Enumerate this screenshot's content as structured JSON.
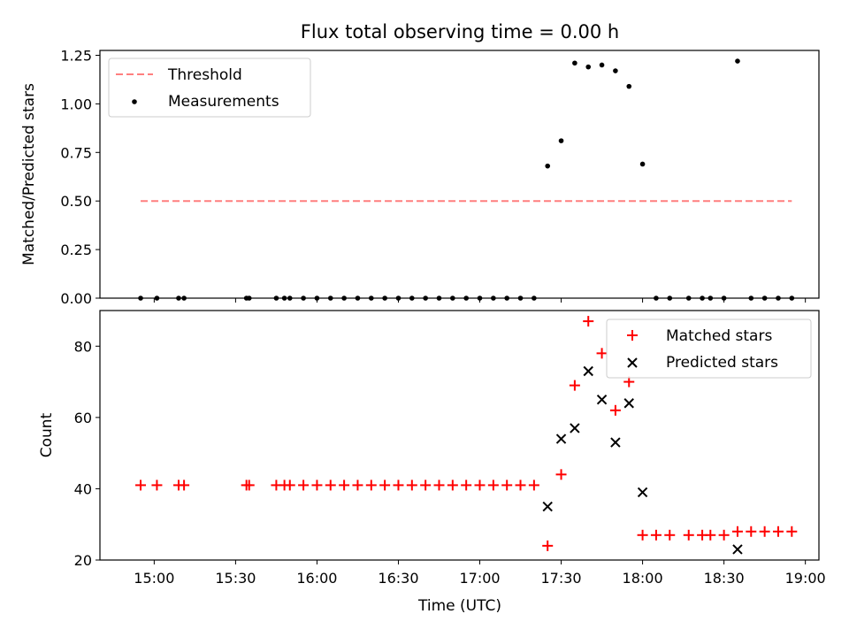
{
  "chart_data": [
    {
      "type": "scatter",
      "title": "Flux total observing time = 0.00 h",
      "xlabel": "",
      "ylabel": "Matched/Predicted stars",
      "xlim": [
        "14:40",
        "19:05"
      ],
      "ylim": [
        0,
        1.275
      ],
      "yticks": [
        "0.00",
        "0.25",
        "0.50",
        "0.75",
        "1.00",
        "1.25"
      ],
      "legend": {
        "placement": "top-left",
        "entries": [
          "Threshold",
          "Measurements"
        ]
      },
      "threshold": {
        "name": "Threshold",
        "value": 0.5,
        "x_start": "14:55",
        "x_end": "18:55",
        "color": "#ff7f7f",
        "style": "dashed"
      },
      "series": [
        {
          "name": "Measurements",
          "color": "#000000",
          "marker": "dot",
          "points": [
            [
              "14:55",
              0
            ],
            [
              "15:01",
              0
            ],
            [
              "15:09",
              0
            ],
            [
              "15:11",
              0
            ],
            [
              "15:34",
              0
            ],
            [
              "15:35",
              0
            ],
            [
              "15:45",
              0
            ],
            [
              "15:48",
              0
            ],
            [
              "15:50",
              0
            ],
            [
              "15:55",
              0
            ],
            [
              "16:00",
              0
            ],
            [
              "16:05",
              0
            ],
            [
              "16:10",
              0
            ],
            [
              "16:15",
              0
            ],
            [
              "16:20",
              0
            ],
            [
              "16:25",
              0
            ],
            [
              "16:30",
              0
            ],
            [
              "16:35",
              0
            ],
            [
              "16:40",
              0
            ],
            [
              "16:45",
              0
            ],
            [
              "16:50",
              0
            ],
            [
              "16:55",
              0
            ],
            [
              "17:00",
              0
            ],
            [
              "17:05",
              0
            ],
            [
              "17:10",
              0
            ],
            [
              "17:15",
              0
            ],
            [
              "17:20",
              0
            ],
            [
              "17:25",
              0.68
            ],
            [
              "17:30",
              0.81
            ],
            [
              "17:35",
              1.21
            ],
            [
              "17:40",
              1.19
            ],
            [
              "17:45",
              1.2
            ],
            [
              "17:50",
              1.17
            ],
            [
              "17:55",
              1.09
            ],
            [
              "18:00",
              0.69
            ],
            [
              "18:05",
              0
            ],
            [
              "18:10",
              0
            ],
            [
              "18:17",
              0
            ],
            [
              "18:22",
              0
            ],
            [
              "18:25",
              0
            ],
            [
              "18:30",
              0
            ],
            [
              "18:35",
              1.22
            ],
            [
              "18:40",
              0
            ],
            [
              "18:45",
              0
            ],
            [
              "18:50",
              0
            ],
            [
              "18:55",
              0
            ]
          ]
        }
      ]
    },
    {
      "type": "scatter",
      "title": "",
      "xlabel": "Time (UTC)",
      "ylabel": "Count",
      "xlim": [
        "14:40",
        "19:05"
      ],
      "ylim": [
        20,
        90
      ],
      "yticks": [
        "20",
        "40",
        "60",
        "80"
      ],
      "xticks": [
        "15:00",
        "15:30",
        "16:00",
        "16:30",
        "17:00",
        "17:30",
        "18:00",
        "18:30",
        "19:00"
      ],
      "legend": {
        "placement": "top-right",
        "entries": [
          "Matched stars",
          "Predicted stars"
        ]
      },
      "series": [
        {
          "name": "Matched stars",
          "color": "#ff0000",
          "marker": "plus",
          "points": [
            [
              "14:55",
              41
            ],
            [
              "15:01",
              41
            ],
            [
              "15:09",
              41
            ],
            [
              "15:11",
              41
            ],
            [
              "15:34",
              41
            ],
            [
              "15:35",
              41
            ],
            [
              "15:45",
              41
            ],
            [
              "15:48",
              41
            ],
            [
              "15:50",
              41
            ],
            [
              "15:55",
              41
            ],
            [
              "16:00",
              41
            ],
            [
              "16:05",
              41
            ],
            [
              "16:10",
              41
            ],
            [
              "16:15",
              41
            ],
            [
              "16:20",
              41
            ],
            [
              "16:25",
              41
            ],
            [
              "16:30",
              41
            ],
            [
              "16:35",
              41
            ],
            [
              "16:40",
              41
            ],
            [
              "16:45",
              41
            ],
            [
              "16:50",
              41
            ],
            [
              "16:55",
              41
            ],
            [
              "17:00",
              41
            ],
            [
              "17:05",
              41
            ],
            [
              "17:10",
              41
            ],
            [
              "17:15",
              41
            ],
            [
              "17:20",
              41
            ],
            [
              "17:25",
              24
            ],
            [
              "17:30",
              44
            ],
            [
              "17:35",
              69
            ],
            [
              "17:40",
              87
            ],
            [
              "17:45",
              78
            ],
            [
              "17:50",
              62
            ],
            [
              "17:55",
              70
            ],
            [
              "18:00",
              27
            ],
            [
              "18:05",
              27
            ],
            [
              "18:10",
              27
            ],
            [
              "18:17",
              27
            ],
            [
              "18:22",
              27
            ],
            [
              "18:25",
              27
            ],
            [
              "18:30",
              27
            ],
            [
              "18:35",
              28
            ],
            [
              "18:40",
              28
            ],
            [
              "18:45",
              28
            ],
            [
              "18:50",
              28
            ],
            [
              "18:55",
              28
            ]
          ]
        },
        {
          "name": "Predicted stars",
          "color": "#000000",
          "marker": "x",
          "points": [
            [
              "17:25",
              35
            ],
            [
              "17:30",
              54
            ],
            [
              "17:35",
              57
            ],
            [
              "17:40",
              73
            ],
            [
              "17:45",
              65
            ],
            [
              "17:50",
              53
            ],
            [
              "17:55",
              64
            ],
            [
              "18:00",
              39
            ],
            [
              "18:35",
              23
            ]
          ]
        }
      ]
    }
  ]
}
